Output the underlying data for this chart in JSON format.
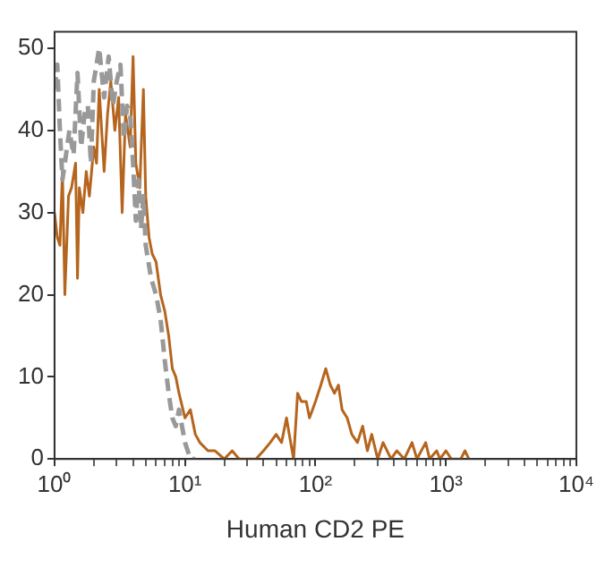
{
  "chart_data": {
    "type": "line",
    "xlabel": "Human CD2 PE",
    "log": "x",
    "grid": false,
    "legend": false,
    "marker": "none",
    "xlim": [
      1,
      10000
    ],
    "ylim": [
      0,
      52
    ],
    "xticks": [
      {
        "value": 1,
        "label": "10⁰"
      },
      {
        "value": 2,
        "label": null
      },
      {
        "value": 3,
        "label": null
      },
      {
        "value": 4,
        "label": null
      },
      {
        "value": 5,
        "label": null
      },
      {
        "value": 6,
        "label": null
      },
      {
        "value": 7,
        "label": null
      },
      {
        "value": 8,
        "label": null
      },
      {
        "value": 9,
        "label": null
      },
      {
        "value": 10,
        "label": "10¹"
      },
      {
        "value": 20,
        "label": null
      },
      {
        "value": 30,
        "label": null
      },
      {
        "value": 40,
        "label": null
      },
      {
        "value": 50,
        "label": null
      },
      {
        "value": 60,
        "label": null
      },
      {
        "value": 70,
        "label": null
      },
      {
        "value": 80,
        "label": null
      },
      {
        "value": 90,
        "label": null
      },
      {
        "value": 100,
        "label": "10²"
      },
      {
        "value": 200,
        "label": null
      },
      {
        "value": 300,
        "label": null
      },
      {
        "value": 400,
        "label": null
      },
      {
        "value": 500,
        "label": null
      },
      {
        "value": 600,
        "label": null
      },
      {
        "value": 700,
        "label": null
      },
      {
        "value": 800,
        "label": null
      },
      {
        "value": 900,
        "label": null
      },
      {
        "value": 1000,
        "label": "10³"
      },
      {
        "value": 2000,
        "label": null
      },
      {
        "value": 3000,
        "label": null
      },
      {
        "value": 4000,
        "label": null
      },
      {
        "value": 5000,
        "label": null
      },
      {
        "value": 6000,
        "label": null
      },
      {
        "value": 7000,
        "label": null
      },
      {
        "value": 8000,
        "label": null
      },
      {
        "value": 9000,
        "label": null
      },
      {
        "value": 10000,
        "label": "10⁴"
      }
    ],
    "yticks": [
      0,
      10,
      20,
      30,
      40,
      50
    ],
    "series": [
      {
        "color": "#999999",
        "line_style": "dashed",
        "x": [
          1.0,
          1.05,
          1.1,
          1.15,
          1.2,
          1.3,
          1.4,
          1.5,
          1.6,
          1.7,
          1.8,
          1.9,
          2.0,
          2.2,
          2.4,
          2.6,
          2.8,
          3.0,
          3.2,
          3.4,
          3.6,
          3.8,
          4.0,
          4.2,
          4.4,
          4.6,
          4.8,
          5.0,
          5.5,
          6,
          6.5,
          7,
          7.5,
          8,
          8.5,
          9,
          10,
          11,
          12
        ],
        "values": [
          45,
          48,
          40,
          34,
          36,
          40,
          37,
          47,
          38,
          42,
          43,
          36,
          46,
          50,
          44,
          49,
          43,
          46,
          48,
          39,
          43,
          42,
          36,
          29,
          34,
          28,
          32,
          26,
          22,
          20,
          17,
          12,
          8,
          5,
          4,
          6,
          2,
          0,
          0
        ]
      },
      {
        "color": "#b5651d",
        "line_style": "solid",
        "x": [
          1.0,
          1.05,
          1.1,
          1.15,
          1.2,
          1.28,
          1.35,
          1.45,
          1.5,
          1.55,
          1.65,
          1.75,
          1.85,
          2.0,
          2.1,
          2.2,
          2.4,
          2.55,
          2.7,
          2.9,
          3.1,
          3.3,
          3.5,
          3.8,
          4.0,
          4.2,
          4.5,
          4.8,
          5.0,
          5.3,
          5.6,
          6.0,
          6.5,
          7.0,
          7.5,
          8,
          8.5,
          9,
          10,
          11,
          12,
          13,
          15,
          17,
          20,
          23,
          26,
          30,
          35,
          40,
          45,
          50,
          55,
          60,
          63,
          68,
          73,
          78,
          85,
          90,
          95,
          100,
          110,
          120,
          130,
          140,
          150,
          160,
          175,
          190,
          210,
          230,
          250,
          270,
          300,
          330,
          380,
          420,
          480,
          550,
          600,
          700,
          750,
          850,
          900,
          1000,
          1100,
          1300,
          1400,
          1500
        ],
        "values": [
          30,
          27,
          26,
          35,
          20,
          32,
          33,
          36,
          22,
          33,
          30,
          35,
          32,
          38,
          36,
          45,
          35,
          42,
          46,
          40,
          44,
          30,
          42,
          38,
          49,
          36,
          33,
          45,
          32,
          27,
          25,
          24,
          20,
          18,
          15,
          11,
          10,
          8,
          5,
          6,
          3,
          2,
          1,
          1,
          0,
          1,
          0,
          0,
          0,
          1,
          2,
          3,
          2,
          5,
          3,
          0,
          8,
          7,
          7,
          5,
          6,
          7,
          9,
          11,
          9,
          8,
          9,
          6,
          5,
          3,
          2,
          4,
          1,
          3,
          0,
          2,
          0,
          1,
          0,
          2,
          0,
          2,
          0,
          1,
          0,
          1,
          0,
          0,
          1,
          0
        ]
      }
    ]
  }
}
